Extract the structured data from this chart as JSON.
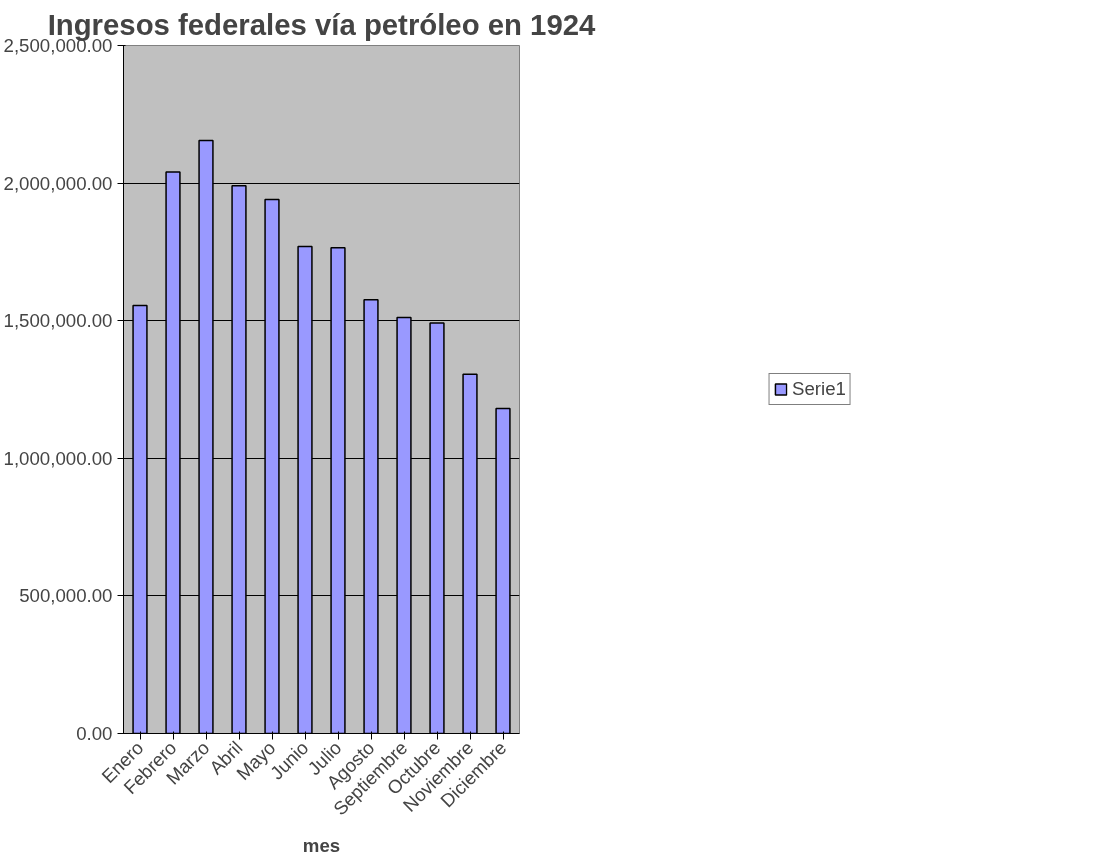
{
  "chart_data": {
    "type": "bar",
    "title": "Ingresos federales vía petróleo en 1924",
    "xlabel": "mes",
    "categories": [
      "Enero",
      "Febrero",
      "Marzo",
      "Abril",
      "Mayo",
      "Junio",
      "Julio",
      "Agosto",
      "Septiembre",
      "Octubre",
      "Noviembre",
      "Diciembre"
    ],
    "series": [
      {
        "name": "Serie1",
        "color": "#9999ff",
        "values": [
          1555000,
          2040000,
          2155000,
          1990000,
          1940000,
          1770000,
          1765000,
          1576000,
          1512000,
          1492000,
          1305000,
          1181000
        ]
      }
    ],
    "ylim": [
      0,
      2500000
    ],
    "yticks": [
      {
        "value": 0,
        "label": "0.00"
      },
      {
        "value": 500000,
        "label": "500,000.00"
      },
      {
        "value": 1000000,
        "label": "1,000,000.00"
      },
      {
        "value": 1500000,
        "label": "1,500,000.00"
      },
      {
        "value": 2000000,
        "label": "2,000,000.00"
      },
      {
        "value": 2500000,
        "label": "2,500,000.00"
      }
    ],
    "grid": "y",
    "legend": "right"
  }
}
